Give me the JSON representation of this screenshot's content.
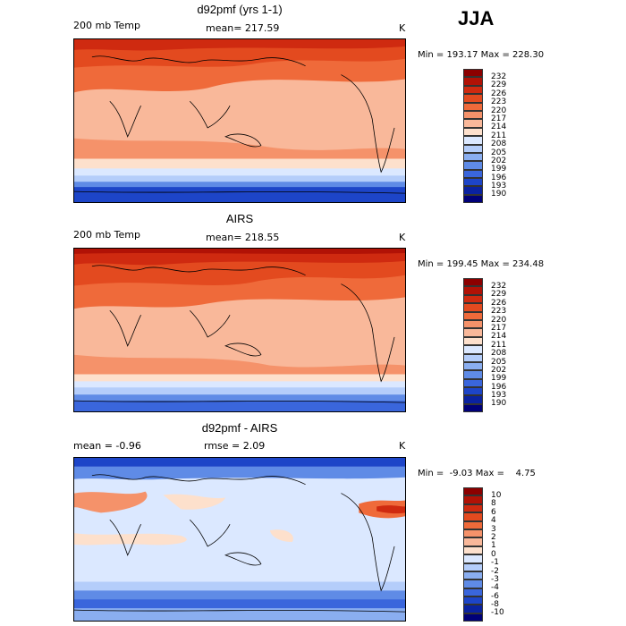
{
  "season": "JJA",
  "panels": [
    {
      "title": "d92pmf (yrs 1-1)",
      "left_label": "200 mb Temp",
      "center_label": "mean= 217.59",
      "units": "K",
      "minmax": "Min = 193.17 Max = 228.30",
      "levels": [
        "232",
        "229",
        "226",
        "223",
        "220",
        "217",
        "214",
        "211",
        "208",
        "205",
        "202",
        "199",
        "196",
        "193",
        "190"
      ],
      "colors": [
        "#8c0000",
        "#b11206",
        "#cf2a10",
        "#e34a1f",
        "#ef6a3a",
        "#f5926a",
        "#f9b89a",
        "#fde0cc",
        "#dbe8ff",
        "#b4cdfa",
        "#8aaef0",
        "#5f8be6",
        "#3a66dc",
        "#1d45c8",
        "#0a22a0",
        "#000078"
      ]
    },
    {
      "title": "AIRS",
      "left_label": "200 mb Temp",
      "center_label": "mean= 218.55",
      "units": "K",
      "minmax": "Min = 199.45 Max = 234.48",
      "levels": [
        "232",
        "229",
        "226",
        "223",
        "220",
        "217",
        "214",
        "211",
        "208",
        "205",
        "202",
        "199",
        "196",
        "193",
        "190"
      ],
      "colors": [
        "#8c0000",
        "#b11206",
        "#cf2a10",
        "#e34a1f",
        "#ef6a3a",
        "#f5926a",
        "#f9b89a",
        "#fde0cc",
        "#dbe8ff",
        "#b4cdfa",
        "#8aaef0",
        "#5f8be6",
        "#3a66dc",
        "#1d45c8",
        "#0a22a0",
        "#000078"
      ]
    },
    {
      "title": "d92pmf - AIRS",
      "left_label": "mean =   -0.96",
      "center_label": "rmse =    2.09",
      "units": "K",
      "minmax": "Min =  -9.03 Max =    4.75",
      "levels": [
        "10",
        "8",
        "6",
        "4",
        "3",
        "2",
        "1",
        "0",
        "-1",
        "-2",
        "-3",
        "-4",
        "-6",
        "-8",
        "-10"
      ],
      "colors": [
        "#8c0000",
        "#b11206",
        "#cf2a10",
        "#e34a1f",
        "#ef6a3a",
        "#f5926a",
        "#f9b89a",
        "#fde0cc",
        "#dbe8ff",
        "#b4cdfa",
        "#8aaef0",
        "#5f8be6",
        "#3a66dc",
        "#1d45c8",
        "#0a22a0",
        "#000078"
      ]
    }
  ]
}
